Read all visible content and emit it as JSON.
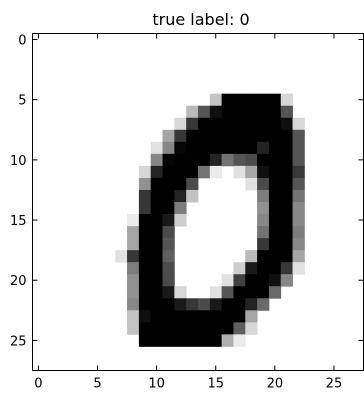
{
  "chart_data": {
    "type": "heatmap",
    "title": "true label: 0",
    "xlabel": "",
    "ylabel": "",
    "x_ticks": [
      0,
      5,
      10,
      15,
      20,
      25
    ],
    "y_ticks": [
      0,
      5,
      10,
      15,
      20,
      25
    ],
    "xlim": [
      -0.5,
      27.5
    ],
    "ylim": [
      27.5,
      -0.5
    ],
    "colormap": "gray_r",
    "value_range": [
      0,
      255
    ],
    "grid": false,
    "rows": [
      [
        0,
        0,
        0,
        0,
        0,
        0,
        0,
        0,
        0,
        0,
        0,
        0,
        0,
        0,
        0,
        0,
        0,
        0,
        0,
        0,
        0,
        0,
        0,
        0,
        0,
        0,
        0,
        0
      ],
      [
        0,
        0,
        0,
        0,
        0,
        0,
        0,
        0,
        0,
        0,
        0,
        0,
        0,
        0,
        0,
        0,
        0,
        0,
        0,
        0,
        0,
        0,
        0,
        0,
        0,
        0,
        0,
        0
      ],
      [
        0,
        0,
        0,
        0,
        0,
        0,
        0,
        0,
        0,
        0,
        0,
        0,
        0,
        0,
        0,
        0,
        0,
        0,
        0,
        0,
        0,
        0,
        0,
        0,
        0,
        0,
        0,
        0
      ],
      [
        0,
        0,
        0,
        0,
        0,
        0,
        0,
        0,
        0,
        0,
        0,
        0,
        0,
        0,
        0,
        0,
        0,
        0,
        0,
        0,
        0,
        0,
        0,
        0,
        0,
        0,
        0,
        0
      ],
      [
        0,
        0,
        0,
        0,
        0,
        0,
        0,
        0,
        0,
        0,
        0,
        0,
        0,
        0,
        0,
        0,
        0,
        0,
        0,
        0,
        0,
        0,
        0,
        0,
        0,
        0,
        0,
        0
      ],
      [
        0,
        0,
        0,
        0,
        0,
        0,
        0,
        0,
        0,
        0,
        0,
        0,
        0,
        0,
        0,
        60,
        255,
        255,
        255,
        255,
        255,
        40,
        0,
        0,
        0,
        0,
        0,
        0
      ],
      [
        0,
        0,
        0,
        0,
        0,
        0,
        0,
        0,
        0,
        0,
        0,
        0,
        0,
        70,
        170,
        240,
        255,
        255,
        255,
        255,
        255,
        170,
        0,
        0,
        0,
        0,
        0,
        0
      ],
      [
        0,
        0,
        0,
        0,
        0,
        0,
        0,
        0,
        0,
        0,
        0,
        0,
        40,
        200,
        255,
        255,
        255,
        255,
        255,
        255,
        255,
        240,
        40,
        0,
        0,
        0,
        0,
        0
      ],
      [
        0,
        0,
        0,
        0,
        0,
        0,
        0,
        0,
        0,
        0,
        0,
        90,
        200,
        255,
        255,
        255,
        255,
        255,
        255,
        255,
        255,
        255,
        170,
        0,
        0,
        0,
        0,
        0
      ],
      [
        0,
        0,
        0,
        0,
        0,
        0,
        0,
        0,
        0,
        0,
        30,
        120,
        250,
        255,
        255,
        255,
        255,
        255,
        255,
        220,
        255,
        255,
        170,
        0,
        0,
        0,
        0,
        0
      ],
      [
        0,
        0,
        0,
        0,
        0,
        0,
        0,
        0,
        0,
        0,
        120,
        250,
        255,
        255,
        255,
        220,
        140,
        170,
        180,
        255,
        255,
        255,
        170,
        0,
        0,
        0,
        0,
        0
      ],
      [
        0,
        0,
        0,
        0,
        0,
        0,
        0,
        0,
        0,
        40,
        220,
        255,
        255,
        255,
        140,
        20,
        0,
        30,
        90,
        240,
        255,
        255,
        200,
        0,
        0,
        0,
        0,
        0
      ],
      [
        0,
        0,
        0,
        0,
        0,
        0,
        0,
        0,
        0,
        110,
        255,
        255,
        255,
        180,
        0,
        0,
        0,
        0,
        30,
        180,
        255,
        255,
        170,
        0,
        0,
        0,
        0,
        0
      ],
      [
        0,
        0,
        0,
        0,
        0,
        0,
        0,
        0,
        0,
        200,
        255,
        255,
        220,
        60,
        0,
        0,
        0,
        0,
        0,
        130,
        255,
        255,
        140,
        0,
        0,
        0,
        0,
        0
      ],
      [
        0,
        0,
        0,
        0,
        0,
        0,
        0,
        0,
        0,
        200,
        255,
        255,
        130,
        0,
        0,
        0,
        0,
        0,
        0,
        110,
        255,
        255,
        120,
        0,
        0,
        0,
        0,
        0
      ],
      [
        0,
        0,
        0,
        0,
        0,
        0,
        0,
        0,
        20,
        255,
        255,
        230,
        50,
        0,
        0,
        0,
        0,
        0,
        0,
        120,
        255,
        255,
        120,
        0,
        0,
        0,
        0,
        0
      ],
      [
        0,
        0,
        0,
        0,
        0,
        0,
        0,
        0,
        90,
        255,
        255,
        180,
        0,
        0,
        0,
        0,
        0,
        0,
        0,
        140,
        255,
        255,
        130,
        0,
        0,
        0,
        0,
        0
      ],
      [
        0,
        0,
        0,
        0,
        0,
        0,
        0,
        0,
        90,
        255,
        255,
        170,
        0,
        0,
        0,
        0,
        0,
        0,
        0,
        200,
        255,
        255,
        120,
        0,
        0,
        0,
        0,
        0
      ],
      [
        0,
        0,
        0,
        0,
        0,
        0,
        0,
        30,
        200,
        255,
        255,
        160,
        0,
        0,
        0,
        0,
        0,
        0,
        70,
        255,
        255,
        255,
        90,
        0,
        0,
        0,
        0,
        0
      ],
      [
        0,
        0,
        0,
        0,
        0,
        0,
        0,
        0,
        130,
        255,
        255,
        180,
        0,
        0,
        0,
        0,
        0,
        50,
        230,
        255,
        255,
        200,
        30,
        0,
        0,
        0,
        0,
        0
      ],
      [
        0,
        0,
        0,
        0,
        0,
        0,
        0,
        0,
        110,
        255,
        255,
        180,
        0,
        0,
        0,
        0,
        30,
        190,
        255,
        255,
        240,
        120,
        0,
        0,
        0,
        0,
        0,
        0
      ],
      [
        0,
        0,
        0,
        0,
        0,
        0,
        0,
        0,
        110,
        255,
        255,
        230,
        40,
        0,
        0,
        30,
        170,
        255,
        255,
        255,
        150,
        0,
        0,
        0,
        0,
        0,
        0,
        0
      ],
      [
        0,
        0,
        0,
        0,
        0,
        0,
        0,
        0,
        120,
        255,
        255,
        255,
        230,
        200,
        180,
        230,
        255,
        255,
        220,
        150,
        0,
        0,
        0,
        0,
        0,
        0,
        0,
        0
      ],
      [
        0,
        0,
        0,
        0,
        0,
        0,
        0,
        0,
        60,
        240,
        255,
        255,
        255,
        255,
        255,
        255,
        255,
        255,
        90,
        0,
        0,
        0,
        0,
        0,
        0,
        0,
        0,
        0
      ],
      [
        0,
        0,
        0,
        0,
        0,
        0,
        0,
        0,
        60,
        255,
        255,
        255,
        255,
        255,
        255,
        255,
        255,
        160,
        40,
        0,
        0,
        0,
        0,
        0,
        0,
        0,
        0,
        0
      ],
      [
        0,
        0,
        0,
        0,
        0,
        0,
        0,
        0,
        0,
        255,
        255,
        255,
        255,
        255,
        255,
        255,
        80,
        20,
        0,
        0,
        0,
        0,
        0,
        0,
        0,
        0,
        0,
        0
      ],
      [
        0,
        0,
        0,
        0,
        0,
        0,
        0,
        0,
        0,
        0,
        0,
        0,
        0,
        0,
        0,
        0,
        0,
        0,
        0,
        0,
        0,
        0,
        0,
        0,
        0,
        0,
        0,
        0
      ],
      [
        0,
        0,
        0,
        0,
        0,
        0,
        0,
        0,
        0,
        0,
        0,
        0,
        0,
        0,
        0,
        0,
        0,
        0,
        0,
        0,
        0,
        0,
        0,
        0,
        0,
        0,
        0,
        0
      ]
    ]
  }
}
